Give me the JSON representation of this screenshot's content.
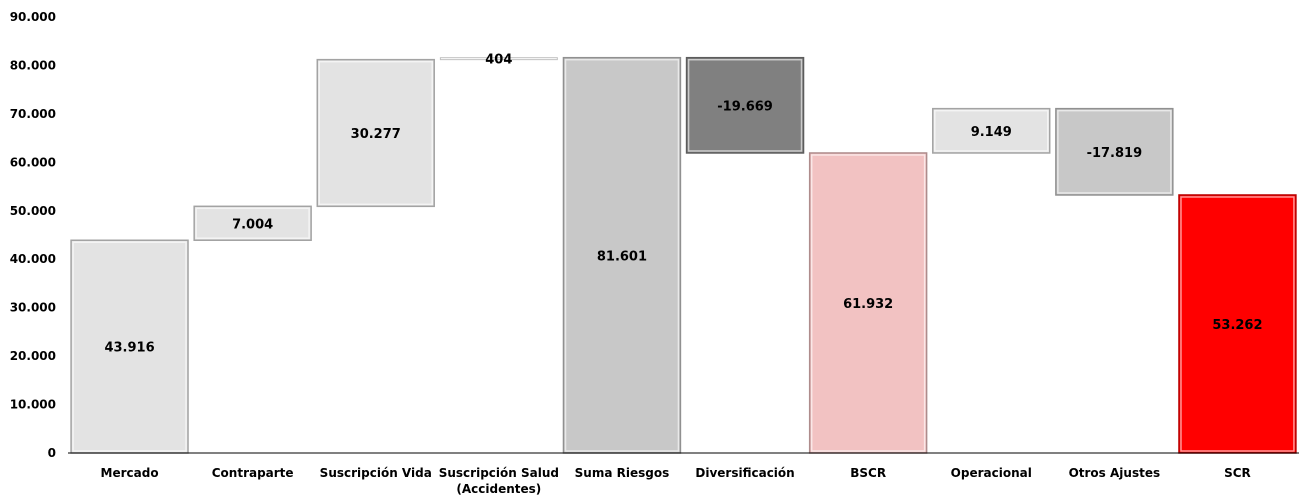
{
  "chart_data": {
    "type": "bar",
    "subtype": "waterfall",
    "title": "",
    "xlabel": "",
    "ylabel": "",
    "ylim": [
      0,
      90000
    ],
    "yticks": [
      {
        "value": 0,
        "label": "0"
      },
      {
        "value": 10000,
        "label": "10.000"
      },
      {
        "value": 20000,
        "label": "20.000"
      },
      {
        "value": 30000,
        "label": "30.000"
      },
      {
        "value": 40000,
        "label": "40.000"
      },
      {
        "value": 50000,
        "label": "50.000"
      },
      {
        "value": 60000,
        "label": "60.000"
      },
      {
        "value": 70000,
        "label": "70.000"
      },
      {
        "value": 80000,
        "label": "80.000"
      },
      {
        "value": 90000,
        "label": "90.000"
      }
    ],
    "grid": false,
    "legend": "none",
    "bars": [
      {
        "category": [
          "Mercado"
        ],
        "start": 0,
        "end": 43916,
        "label": "43.916",
        "color": "#e3e3e3"
      },
      {
        "category": [
          "Contraparte"
        ],
        "start": 43916,
        "end": 50920,
        "label": "7.004",
        "color": "#e3e3e3"
      },
      {
        "category": [
          "Suscripción Vida"
        ],
        "start": 50920,
        "end": 81197,
        "label": "30.277",
        "color": "#e3e3e3"
      },
      {
        "category": [
          "Suscripción Salud",
          "(Accidentes)"
        ],
        "start": 81197,
        "end": 81601,
        "label": "404",
        "color": "#e3e3e3"
      },
      {
        "category": [
          "Suma Riesgos"
        ],
        "start": 0,
        "end": 81601,
        "label": "81.601",
        "color": "#c8c8c8"
      },
      {
        "category": [
          "Diversificación"
        ],
        "start": 81601,
        "end": 61932,
        "label": "-19.669",
        "color": "#808080"
      },
      {
        "category": [
          "BSCR"
        ],
        "start": 0,
        "end": 61932,
        "label": "61.932",
        "color": "#f2c2c2"
      },
      {
        "category": [
          "Operacional"
        ],
        "start": 61932,
        "end": 71081,
        "label": "9.149",
        "color": "#e3e3e3"
      },
      {
        "category": [
          "Otros Ajustes"
        ],
        "start": 71081,
        "end": 53262,
        "label": "-17.819",
        "color": "#c8c8c8"
      },
      {
        "category": [
          "SCR"
        ],
        "start": 0,
        "end": 53262,
        "label": "53.262",
        "color": "#ff0000"
      }
    ]
  }
}
